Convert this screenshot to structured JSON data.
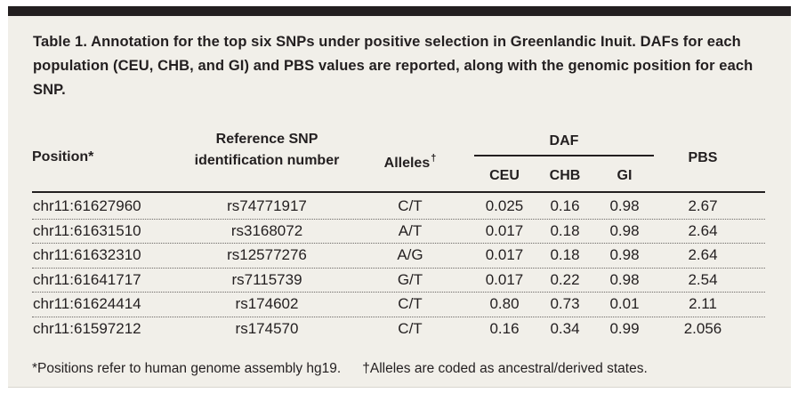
{
  "caption": "Table 1. Annotation for the top six SNPs under positive selection in Greenlandic Inuit. DAFs for each population (CEU, CHB, and GI) and PBS values are reported, along with the genomic position for each SNP.",
  "headers": {
    "position": "Position*",
    "reference_snp": "Reference SNP identification number",
    "alleles": "Alleles",
    "alleles_mark": "†",
    "daf": "DAF",
    "ceu": "CEU",
    "chb": "CHB",
    "gi": "GI",
    "pbs": "PBS"
  },
  "rows": [
    {
      "position": "chr11:61627960",
      "rsid": "rs74771917",
      "alleles": "C/T",
      "ceu": "0.025",
      "chb": "0.16",
      "gi": "0.98",
      "pbs": "2.67"
    },
    {
      "position": "chr11:61631510",
      "rsid": "rs3168072",
      "alleles": "A/T",
      "ceu": "0.017",
      "chb": "0.18",
      "gi": "0.98",
      "pbs": "2.64"
    },
    {
      "position": "chr11:61632310",
      "rsid": "rs12577276",
      "alleles": "A/G",
      "ceu": "0.017",
      "chb": "0.18",
      "gi": "0.98",
      "pbs": "2.64"
    },
    {
      "position": "chr11:61641717",
      "rsid": "rs7115739",
      "alleles": "G/T",
      "ceu": "0.017",
      "chb": "0.22",
      "gi": "0.98",
      "pbs": "2.54"
    },
    {
      "position": "chr11:61624414",
      "rsid": "rs174602",
      "alleles": "C/T",
      "ceu": "0.80",
      "chb": "0.73",
      "gi": "0.01",
      "pbs": "2.11"
    },
    {
      "position": "chr11:61597212",
      "rsid": "rs174570",
      "alleles": "C/T",
      "ceu": "0.16",
      "chb": "0.34",
      "gi": "0.99",
      "pbs": "2.056"
    }
  ],
  "footnotes": {
    "positions": "*Positions refer to human genome assembly hg19.",
    "alleles": "†Alleles are coded as ancestral/derived states."
  }
}
